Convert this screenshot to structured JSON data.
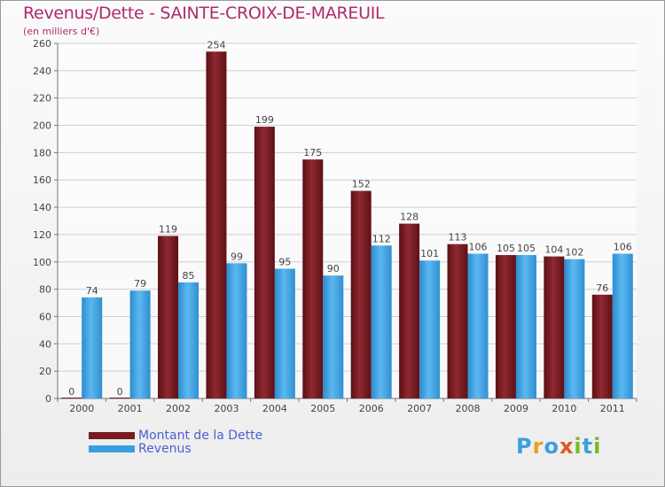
{
  "header": {
    "title": "Revenus/Dette - SAINTE-CROIX-DE-MAREUIL",
    "subtitle": "(en milliers d'€)"
  },
  "colors": {
    "dette": "#7a1a22",
    "revenus": "#3a9fe0",
    "grid": "#cfcfcf",
    "title": "#b02a6a",
    "legend_text": "#4e5ed3"
  },
  "legend": {
    "dette_label": "Montant de la Dette",
    "revenus_label": "Revenus"
  },
  "brand": {
    "letters": [
      "P",
      "r",
      "o",
      "x",
      "i",
      "t",
      "i"
    ],
    "letter_colors": [
      "#3a9fe0",
      "#e8a020",
      "#3a9fe0",
      "#e05a20",
      "#7ab82e",
      "#3a9fe0",
      "#7ab82e"
    ]
  },
  "chart_data": {
    "type": "bar",
    "title": "Revenus/Dette - SAINTE-CROIX-DE-MAREUIL",
    "subtitle": "(en milliers d'€)",
    "xlabel": "",
    "ylabel": "",
    "categories": [
      "2000",
      "2001",
      "2002",
      "2003",
      "2004",
      "2005",
      "2006",
      "2007",
      "2008",
      "2009",
      "2010",
      "2011"
    ],
    "series": [
      {
        "name": "Montant de la Dette",
        "values": [
          0,
          0,
          119,
          254,
          199,
          175,
          152,
          128,
          113,
          105,
          104,
          76
        ]
      },
      {
        "name": "Revenus",
        "values": [
          74,
          79,
          85,
          99,
          95,
          90,
          112,
          101,
          106,
          105,
          102,
          106
        ]
      }
    ],
    "ylim": [
      0,
      260
    ],
    "yticks": [
      0,
      20,
      40,
      60,
      80,
      100,
      120,
      140,
      160,
      180,
      200,
      220,
      240,
      260
    ],
    "grid": true,
    "legend_position": "bottom-left"
  }
}
